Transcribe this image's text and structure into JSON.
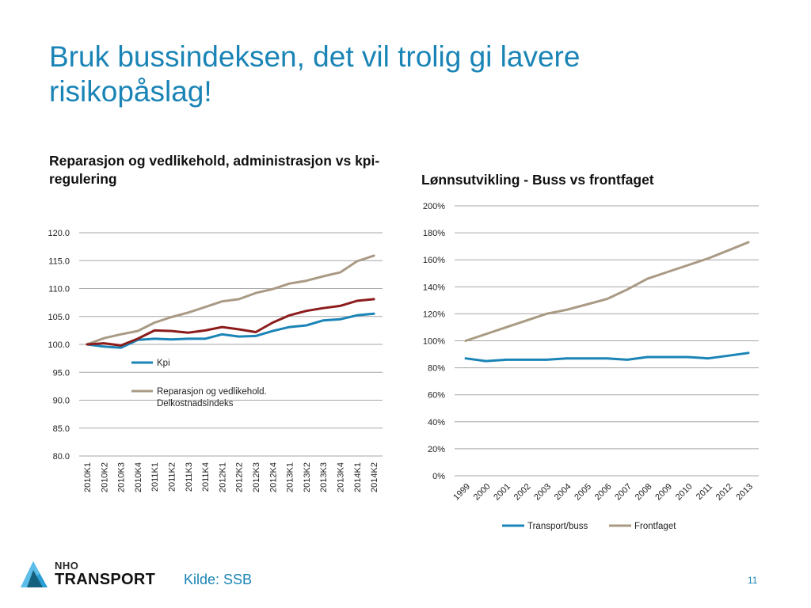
{
  "slide": {
    "title": "Bruk bussindeksen, det vil trolig gi lavere risikopåslag!",
    "source": "Kilde: SSB",
    "page_number": "11",
    "logo": {
      "top": "NHO",
      "bottom": "TRANSPORT"
    }
  },
  "colors": {
    "title": "#1a84b6",
    "kpi": "#1a84b6",
    "reparasjon": "#a99a84",
    "admin": "#8c1c1c",
    "transport_buss": "#1a84b6",
    "frontfaget": "#a99a84",
    "grid": "#a6a6a6"
  },
  "chart_data": [
    {
      "type": "line",
      "title": "Reparasjon og vedlikehold, administrasjon vs kpi-regulering",
      "xlabel": "",
      "ylabel": "",
      "x": [
        "2010K1",
        "2010K2",
        "2010K3",
        "2010K4",
        "2011K1",
        "2011K2",
        "2011K3",
        "2011K4",
        "2012K1",
        "2012K2",
        "2012K3",
        "2012K4",
        "2013K1",
        "2013K2",
        "2013K3",
        "2013K4",
        "2014K1",
        "2014K2"
      ],
      "ylim": [
        80,
        120
      ],
      "yticks": [
        "80.0",
        "85.0",
        "90.0",
        "95.0",
        "100.0",
        "105.0",
        "110.0",
        "115.0",
        "120.0"
      ],
      "grid": true,
      "legend_position": "inside-left",
      "series": [
        {
          "name": "Kpi",
          "color_key": "kpi",
          "in_legend": true,
          "values": [
            100.0,
            99.6,
            99.4,
            100.8,
            101.0,
            100.9,
            101.0,
            101.0,
            101.8,
            101.4,
            101.5,
            102.4,
            103.1,
            103.4,
            104.3,
            104.5,
            105.2,
            105.5
          ]
        },
        {
          "name": "Reparasjon og vedlikehold. Delkostnadsindeks",
          "color_key": "reparasjon",
          "in_legend": true,
          "legend_lines": [
            "Reparasjon og vedlikehold.",
            "Delkostnadsindeks"
          ],
          "values": [
            100.0,
            101.1,
            101.8,
            102.4,
            103.9,
            104.9,
            105.7,
            106.7,
            107.7,
            108.1,
            109.2,
            109.9,
            110.9,
            111.4,
            112.2,
            112.9,
            114.9,
            115.9
          ]
        },
        {
          "name": "",
          "color_key": "admin",
          "in_legend": false,
          "values": [
            100.0,
            100.2,
            99.8,
            101.0,
            102.5,
            102.4,
            102.1,
            102.5,
            103.1,
            102.7,
            102.2,
            103.9,
            105.2,
            106.0,
            106.5,
            106.9,
            107.8,
            108.1
          ]
        }
      ]
    },
    {
      "type": "line",
      "title": "Lønnsutvikling - Buss vs frontfaget",
      "xlabel": "",
      "ylabel": "",
      "x": [
        "1999",
        "2000",
        "2001",
        "2002",
        "2003",
        "2004",
        "2005",
        "2006",
        "2007",
        "2008",
        "2009",
        "2010",
        "2011",
        "2012",
        "2013"
      ],
      "ylim": [
        0,
        200
      ],
      "yticks": [
        "0%",
        "20%",
        "40%",
        "60%",
        "80%",
        "100%",
        "120%",
        "140%",
        "160%",
        "180%",
        "200%"
      ],
      "grid": true,
      "legend_position": "bottom",
      "series": [
        {
          "name": "Transport/buss",
          "color_key": "transport_buss",
          "values": [
            87,
            85,
            86,
            86,
            86,
            87,
            87,
            87,
            86,
            88,
            88,
            88,
            87,
            89,
            91
          ]
        },
        {
          "name": "Frontfaget",
          "color_key": "frontfaget",
          "values": [
            100,
            105,
            110,
            115,
            120,
            123,
            127,
            131,
            138,
            146,
            151,
            156,
            161,
            167,
            173
          ]
        }
      ]
    }
  ]
}
